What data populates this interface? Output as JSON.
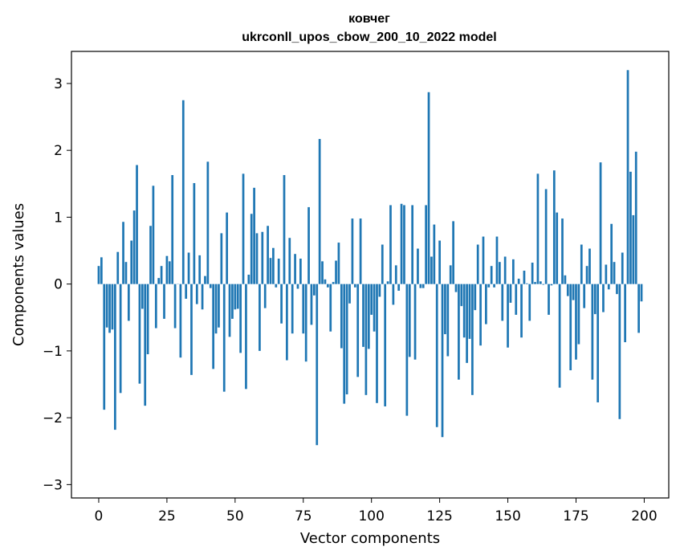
{
  "chart_data": {
    "type": "bar",
    "title": "ковчег",
    "subtitle": "ukrconll_upos_cbow_200_10_2022 model",
    "xlabel": "Vector components",
    "ylabel": "Components values",
    "xlim": [
      -10,
      209
    ],
    "ylim": [
      -3.2,
      3.48
    ],
    "xticks": [
      0,
      25,
      50,
      75,
      100,
      125,
      150,
      175,
      200
    ],
    "yticks": [
      -3,
      -2,
      -1,
      0,
      1,
      2,
      3
    ],
    "ytick_labels": [
      "−3",
      "−2",
      "−1",
      "0",
      "1",
      "2",
      "3"
    ],
    "grid": false,
    "bar_color": "#1f77b4",
    "x": [
      0,
      1,
      2,
      3,
      4,
      5,
      6,
      7,
      8,
      9,
      10,
      11,
      12,
      13,
      14,
      15,
      16,
      17,
      18,
      19,
      20,
      21,
      22,
      23,
      24,
      25,
      26,
      27,
      28,
      29,
      30,
      31,
      32,
      33,
      34,
      35,
      36,
      37,
      38,
      39,
      40,
      41,
      42,
      43,
      44,
      45,
      46,
      47,
      48,
      49,
      50,
      51,
      52,
      53,
      54,
      55,
      56,
      57,
      58,
      59,
      60,
      61,
      62,
      63,
      64,
      65,
      66,
      67,
      68,
      69,
      70,
      71,
      72,
      73,
      74,
      75,
      76,
      77,
      78,
      79,
      80,
      81,
      82,
      83,
      84,
      85,
      86,
      87,
      88,
      89,
      90,
      91,
      92,
      93,
      94,
      95,
      96,
      97,
      98,
      99,
      100,
      101,
      102,
      103,
      104,
      105,
      106,
      107,
      108,
      109,
      110,
      111,
      112,
      113,
      114,
      115,
      116,
      117,
      118,
      119,
      120,
      121,
      122,
      123,
      124,
      125,
      126,
      127,
      128,
      129,
      130,
      131,
      132,
      133,
      134,
      135,
      136,
      137,
      138,
      139,
      140,
      141,
      142,
      143,
      144,
      145,
      146,
      147,
      148,
      149,
      150,
      151,
      152,
      153,
      154,
      155,
      156,
      157,
      158,
      159,
      160,
      161,
      162,
      163,
      164,
      165,
      166,
      167,
      168,
      169,
      170,
      171,
      172,
      173,
      174,
      175,
      176,
      177,
      178,
      179,
      180,
      181,
      182,
      183,
      184,
      185,
      186,
      187,
      188,
      189,
      190,
      191,
      192,
      193,
      194,
      195,
      196,
      197,
      198,
      199
    ],
    "values": [
      0.27,
      0.4,
      -1.88,
      -0.65,
      -0.73,
      -0.68,
      -2.18,
      0.48,
      -1.63,
      0.93,
      0.33,
      -0.55,
      0.65,
      1.1,
      1.78,
      -1.49,
      -0.37,
      -1.82,
      -1.05,
      0.87,
      1.47,
      -0.66,
      0.09,
      0.27,
      -0.52,
      0.42,
      0.34,
      1.63,
      -0.66,
      0.0,
      -1.1,
      2.75,
      -0.22,
      0.47,
      -1.36,
      1.51,
      -0.3,
      0.43,
      -0.38,
      0.12,
      1.83,
      -0.06,
      -1.27,
      -0.74,
      -0.65,
      0.76,
      -1.61,
      1.07,
      -0.79,
      -0.52,
      -0.38,
      -0.37,
      -1.03,
      1.65,
      -1.57,
      0.14,
      1.05,
      1.44,
      0.76,
      -1.0,
      0.78,
      -0.36,
      0.87,
      0.39,
      0.54,
      -0.05,
      0.38,
      -0.59,
      1.63,
      -1.14,
      0.69,
      -0.74,
      0.45,
      -0.07,
      0.38,
      -0.74,
      -1.16,
      1.15,
      -0.61,
      -0.17,
      -2.41,
      2.17,
      0.34,
      0.07,
      -0.05,
      -0.71,
      0.03,
      0.35,
      0.62,
      -0.96,
      -1.79,
      -1.65,
      -0.29,
      0.98,
      -0.05,
      -1.39,
      0.98,
      -0.94,
      -1.66,
      -0.97,
      -0.46,
      -0.71,
      -1.78,
      -0.19,
      0.59,
      -1.83,
      0.04,
      1.18,
      -0.31,
      0.28,
      -0.1,
      1.2,
      1.18,
      -1.97,
      -1.09,
      1.18,
      -1.13,
      0.53,
      -0.06,
      -0.06,
      1.18,
      2.87,
      0.41,
      0.89,
      -2.14,
      0.65,
      -2.29,
      -0.75,
      -1.08,
      0.28,
      0.94,
      -0.12,
      -1.43,
      -0.33,
      -0.8,
      -1.18,
      -0.82,
      -1.66,
      -0.39,
      0.59,
      -0.92,
      0.71,
      -0.6,
      -0.05,
      0.27,
      -0.05,
      0.71,
      0.33,
      -0.55,
      0.41,
      -0.95,
      -0.28,
      0.37,
      -0.46,
      0.08,
      -0.8,
      0.2,
      0.01,
      -0.55,
      0.32,
      0.03,
      1.65,
      0.04,
      -0.01,
      1.42,
      -0.46,
      -0.02,
      1.7,
      1.07,
      -1.55,
      0.98,
      0.13,
      -0.18,
      -1.29,
      -0.24,
      -1.13,
      -0.9,
      0.59,
      -0.36,
      0.27,
      0.53,
      -1.43,
      -0.45,
      -1.77,
      1.82,
      -0.42,
      0.29,
      -0.08,
      0.9,
      0.33,
      -0.15,
      -2.02,
      0.47,
      -0.87,
      3.2,
      1.68,
      1.03,
      1.98,
      -0.73,
      -0.26
    ]
  }
}
